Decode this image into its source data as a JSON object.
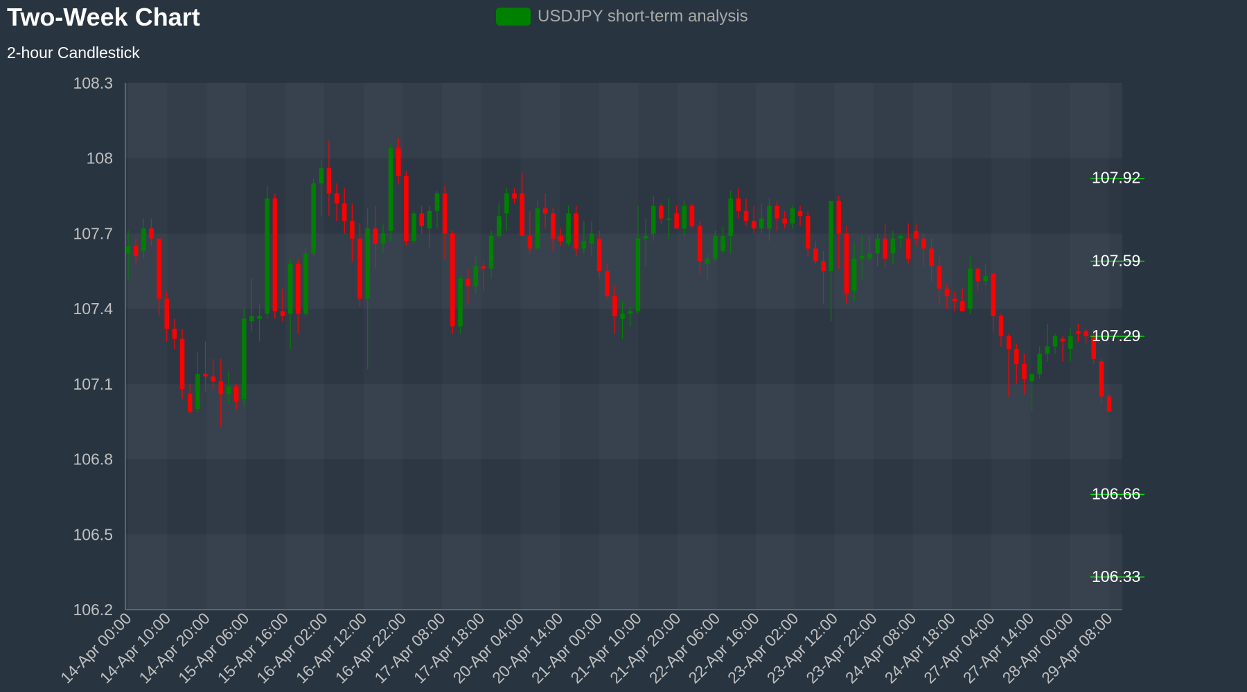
{
  "chart_data": {
    "type": "candlestick",
    "title": "Two-Week Chart",
    "subtitle": "2-hour Candlestick",
    "legend": {
      "label": "USDJPY short-term analysis",
      "color": "#008000",
      "position": "top-center"
    },
    "colors": {
      "up": "#008000",
      "down": "#ff0000",
      "level_line": "#00ff00"
    },
    "ylim": [
      106.2,
      108.3
    ],
    "yticks": [
      "108.3",
      "108",
      "107.7",
      "107.4",
      "107.1",
      "106.8",
      "106.5",
      "106.2"
    ],
    "xticks": [
      "14-Apr 00:00",
      "14-Apr 10:00",
      "14-Apr 20:00",
      "15-Apr 06:00",
      "15-Apr 16:00",
      "16-Apr 02:00",
      "16-Apr 12:00",
      "16-Apr 22:00",
      "17-Apr 08:00",
      "17-Apr 18:00",
      "20-Apr 04:00",
      "20-Apr 14:00",
      "21-Apr 00:00",
      "21-Apr 10:00",
      "21-Apr 20:00",
      "22-Apr 06:00",
      "22-Apr 16:00",
      "23-Apr 02:00",
      "23-Apr 12:00",
      "23-Apr 22:00",
      "24-Apr 08:00",
      "24-Apr 18:00",
      "27-Apr 04:00",
      "27-Apr 14:00",
      "28-Apr 00:00",
      "29-Apr 08:00"
    ],
    "levels": [
      {
        "value": 107.92,
        "label": "107.92"
      },
      {
        "value": 107.59,
        "label": "107.59"
      },
      {
        "value": 107.29,
        "label": "107.29"
      },
      {
        "value": 106.66,
        "label": "106.66"
      },
      {
        "value": 106.33,
        "label": "106.33"
      }
    ],
    "grid": true,
    "candles": [
      [
        107.62,
        107.71,
        107.52,
        107.65
      ],
      [
        107.65,
        107.68,
        107.58,
        107.61
      ],
      [
        107.63,
        107.76,
        107.6,
        107.72
      ],
      [
        107.72,
        107.76,
        107.65,
        107.68
      ],
      [
        107.68,
        107.68,
        107.37,
        107.44
      ],
      [
        107.44,
        107.47,
        107.27,
        107.32
      ],
      [
        107.32,
        107.36,
        107.24,
        107.28
      ],
      [
        107.28,
        107.32,
        107.04,
        107.08
      ],
      [
        107.06,
        107.1,
        106.98,
        106.99
      ],
      [
        107.0,
        107.23,
        106.99,
        107.14
      ],
      [
        107.14,
        107.27,
        107.07,
        107.13
      ],
      [
        107.13,
        107.2,
        107.08,
        107.11
      ],
      [
        107.11,
        107.2,
        106.93,
        107.06
      ],
      [
        107.06,
        107.15,
        107.02,
        107.09
      ],
      [
        107.09,
        107.1,
        107.0,
        107.03
      ],
      [
        107.04,
        107.4,
        107.01,
        107.36
      ],
      [
        107.35,
        107.52,
        107.31,
        107.37
      ],
      [
        107.36,
        107.42,
        107.27,
        107.37
      ],
      [
        107.38,
        107.89,
        107.36,
        107.84
      ],
      [
        107.84,
        107.86,
        107.36,
        107.39
      ],
      [
        107.39,
        107.48,
        107.35,
        107.37
      ],
      [
        107.38,
        107.6,
        107.24,
        107.58
      ],
      [
        107.58,
        107.6,
        107.3,
        107.38
      ],
      [
        107.38,
        107.64,
        107.37,
        107.62
      ],
      [
        107.62,
        107.92,
        107.61,
        107.9
      ],
      [
        107.9,
        107.99,
        107.77,
        107.96
      ],
      [
        107.96,
        108.07,
        107.77,
        107.86
      ],
      [
        107.86,
        107.9,
        107.75,
        107.82
      ],
      [
        107.82,
        107.88,
        107.7,
        107.75
      ],
      [
        107.75,
        107.82,
        107.59,
        107.68
      ],
      [
        107.68,
        107.74,
        107.41,
        107.44
      ],
      [
        107.44,
        107.8,
        107.16,
        107.72
      ],
      [
        107.72,
        107.81,
        107.56,
        107.66
      ],
      [
        107.66,
        107.74,
        107.62,
        107.7
      ],
      [
        107.71,
        108.06,
        107.67,
        108.04
      ],
      [
        108.04,
        108.08,
        107.9,
        107.93
      ],
      [
        107.93,
        107.95,
        107.65,
        107.67
      ],
      [
        107.67,
        107.79,
        107.66,
        107.78
      ],
      [
        107.78,
        107.81,
        107.7,
        107.73
      ],
      [
        107.72,
        107.81,
        107.64,
        107.79
      ],
      [
        107.79,
        107.87,
        107.72,
        107.86
      ],
      [
        107.86,
        107.89,
        107.6,
        107.7
      ],
      [
        107.7,
        107.71,
        107.3,
        107.33
      ],
      [
        107.33,
        107.53,
        107.3,
        107.52
      ],
      [
        107.52,
        107.56,
        107.42,
        107.49
      ],
      [
        107.49,
        107.61,
        107.46,
        107.57
      ],
      [
        107.57,
        107.59,
        107.47,
        107.56
      ],
      [
        107.56,
        107.71,
        107.52,
        107.69
      ],
      [
        107.69,
        107.82,
        107.68,
        107.77
      ],
      [
        107.78,
        107.88,
        107.71,
        107.86
      ],
      [
        107.86,
        107.88,
        107.82,
        107.84
      ],
      [
        107.86,
        107.94,
        107.7,
        107.69
      ],
      [
        107.69,
        107.79,
        107.62,
        107.64
      ],
      [
        107.64,
        107.83,
        107.64,
        107.8
      ],
      [
        107.8,
        107.86,
        107.72,
        107.78
      ],
      [
        107.78,
        107.8,
        107.63,
        107.68
      ],
      [
        107.69,
        107.72,
        107.65,
        107.67
      ],
      [
        107.66,
        107.81,
        107.65,
        107.78
      ],
      [
        107.78,
        107.81,
        107.61,
        107.64
      ],
      [
        107.64,
        107.75,
        107.62,
        107.67
      ],
      [
        107.66,
        107.75,
        107.61,
        107.7
      ],
      [
        107.68,
        107.71,
        107.52,
        107.55
      ],
      [
        107.55,
        107.58,
        107.44,
        107.45
      ],
      [
        107.45,
        107.49,
        107.3,
        107.37
      ],
      [
        107.36,
        107.43,
        107.28,
        107.38
      ],
      [
        107.38,
        107.41,
        107.33,
        107.39
      ],
      [
        107.39,
        107.81,
        107.38,
        107.68
      ],
      [
        107.68,
        107.76,
        107.57,
        107.69
      ],
      [
        107.7,
        107.85,
        107.67,
        107.81
      ],
      [
        107.81,
        107.82,
        107.74,
        107.76
      ],
      [
        107.76,
        107.84,
        107.68,
        107.76
      ],
      [
        107.78,
        107.81,
        107.72,
        107.72
      ],
      [
        107.72,
        107.83,
        107.69,
        107.81
      ],
      [
        107.81,
        107.82,
        107.72,
        107.73
      ],
      [
        107.73,
        107.75,
        107.54,
        107.59
      ],
      [
        107.58,
        107.62,
        107.51,
        107.6
      ],
      [
        107.6,
        107.71,
        107.59,
        107.69
      ],
      [
        107.63,
        107.73,
        107.62,
        107.69
      ],
      [
        107.69,
        107.87,
        107.62,
        107.84
      ],
      [
        107.84,
        107.88,
        107.76,
        107.79
      ],
      [
        107.79,
        107.84,
        107.73,
        107.75
      ],
      [
        107.75,
        107.81,
        107.7,
        107.72
      ],
      [
        107.72,
        107.82,
        107.7,
        107.76
      ],
      [
        107.72,
        107.84,
        107.67,
        107.81
      ],
      [
        107.81,
        107.83,
        107.71,
        107.76
      ],
      [
        107.76,
        107.79,
        107.72,
        107.74
      ],
      [
        107.74,
        107.81,
        107.72,
        107.8
      ],
      [
        107.79,
        107.81,
        107.73,
        107.77
      ],
      [
        107.77,
        107.79,
        107.61,
        107.64
      ],
      [
        107.64,
        107.67,
        107.58,
        107.59
      ],
      [
        107.59,
        107.63,
        107.42,
        107.55
      ],
      [
        107.55,
        107.83,
        107.35,
        107.83
      ],
      [
        107.83,
        107.85,
        107.56,
        107.7
      ],
      [
        107.7,
        107.73,
        107.42,
        107.46
      ],
      [
        107.47,
        107.66,
        107.43,
        107.6
      ],
      [
        107.6,
        107.69,
        107.52,
        107.61
      ],
      [
        107.6,
        107.69,
        107.59,
        107.62
      ],
      [
        107.62,
        107.7,
        107.57,
        107.68
      ],
      [
        107.68,
        107.74,
        107.57,
        107.6
      ],
      [
        107.62,
        107.71,
        107.58,
        107.68
      ],
      [
        107.68,
        107.7,
        107.64,
        107.69
      ],
      [
        107.68,
        107.74,
        107.58,
        107.6
      ],
      [
        107.71,
        107.74,
        107.65,
        107.68
      ],
      [
        107.68,
        107.7,
        107.57,
        107.64
      ],
      [
        107.64,
        107.68,
        107.51,
        107.57
      ],
      [
        107.57,
        107.61,
        107.42,
        107.48
      ],
      [
        107.48,
        107.5,
        107.4,
        107.45
      ],
      [
        107.44,
        107.47,
        107.39,
        107.43
      ],
      [
        107.43,
        107.48,
        107.4,
        107.39
      ],
      [
        107.4,
        107.61,
        107.38,
        107.56
      ],
      [
        107.56,
        107.56,
        107.47,
        107.51
      ],
      [
        107.51,
        107.58,
        107.49,
        107.53
      ],
      [
        107.54,
        107.54,
        107.31,
        107.37
      ],
      [
        107.37,
        107.38,
        107.25,
        107.29
      ],
      [
        107.29,
        107.3,
        107.05,
        107.24
      ],
      [
        107.24,
        107.26,
        107.1,
        107.18
      ],
      [
        107.18,
        107.22,
        107.06,
        107.12
      ],
      [
        107.11,
        107.14,
        106.99,
        107.14
      ],
      [
        107.14,
        107.25,
        107.12,
        107.22
      ],
      [
        107.22,
        107.34,
        107.19,
        107.25
      ],
      [
        107.25,
        107.3,
        107.22,
        107.29
      ],
      [
        107.28,
        107.29,
        107.19,
        107.27
      ],
      [
        107.24,
        107.32,
        107.19,
        107.29
      ],
      [
        107.31,
        107.34,
        107.27,
        107.3
      ],
      [
        107.31,
        107.32,
        107.26,
        107.29
      ],
      [
        107.29,
        107.32,
        107.18,
        107.2
      ],
      [
        107.19,
        107.2,
        107.02,
        107.05
      ],
      [
        107.05,
        107.06,
        106.99,
        106.99
      ]
    ]
  }
}
